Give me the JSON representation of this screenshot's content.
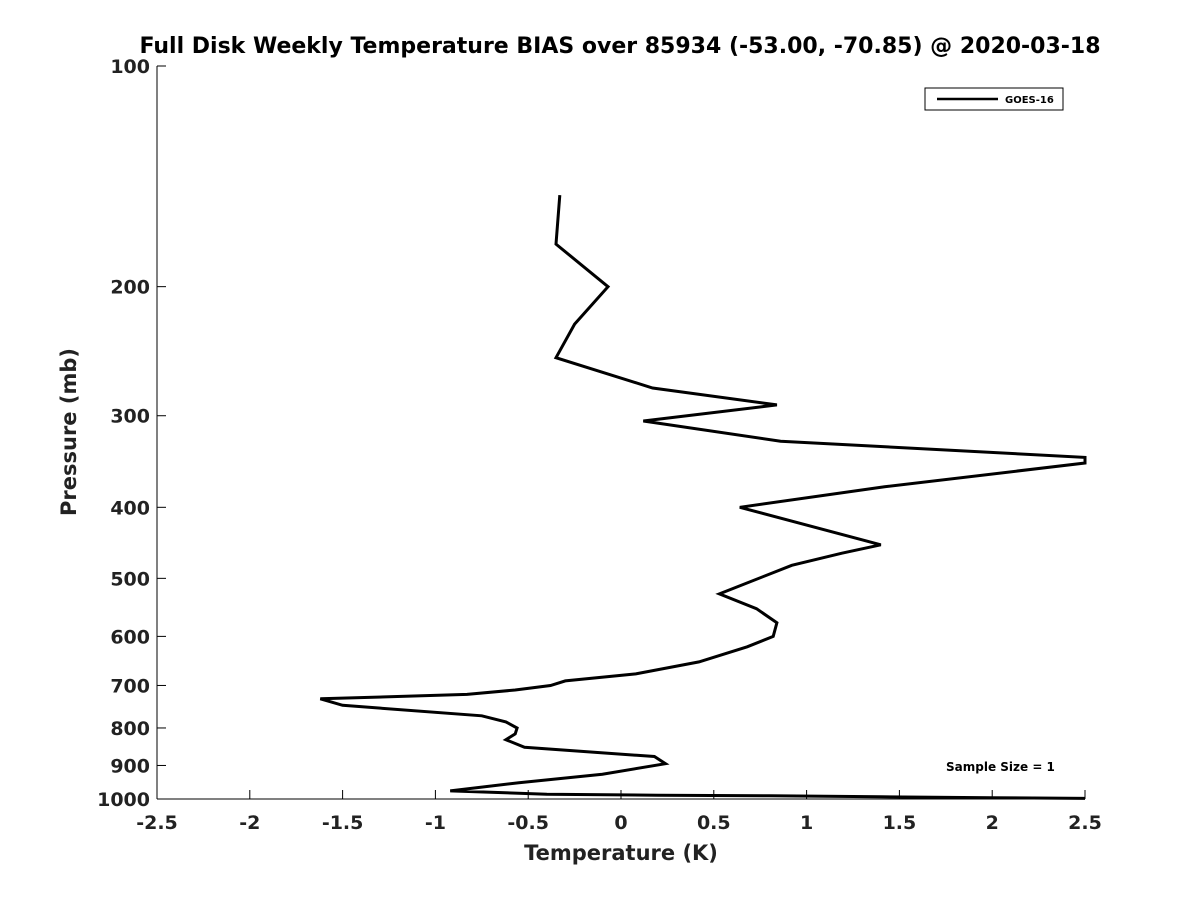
{
  "chart_data": {
    "type": "line",
    "title": "Full Disk Weekly Temperature BIAS over 85934 (-53.00, -70.85) @ 2020-03-18",
    "xlabel": "Temperature (K)",
    "ylabel": "Pressure (mb)",
    "xlim": [
      -2.5,
      2.5
    ],
    "ylim": [
      100,
      1000
    ],
    "y_scale": "log",
    "y_reversed": true,
    "x_ticks": [
      -2.5,
      -2,
      -1.5,
      -1,
      -0.5,
      0,
      0.5,
      1,
      1.5,
      2,
      2.5
    ],
    "x_tick_labels": [
      "-2.5",
      "-2",
      "-1.5",
      "-1",
      "-0.5",
      "0",
      "0.5",
      "1",
      "1.5",
      "2",
      "2.5"
    ],
    "y_ticks": [
      100,
      200,
      300,
      400,
      500,
      600,
      700,
      800,
      900,
      1000
    ],
    "y_tick_labels": [
      "100",
      "200",
      "300",
      "400",
      "500",
      "600",
      "700",
      "800",
      "900",
      "1000"
    ],
    "grid": false,
    "legend_position": "top-right",
    "annotation": "Sample Size = 1",
    "line_color": "#000000",
    "series": [
      {
        "name": "GOES-16",
        "points": [
          [
            -0.33,
            150
          ],
          [
            -0.35,
            175
          ],
          [
            -0.07,
            200
          ],
          [
            -0.25,
            225
          ],
          [
            -0.35,
            250
          ],
          [
            0.17,
            275
          ],
          [
            0.84,
            290
          ],
          [
            0.12,
            305
          ],
          [
            0.86,
            325
          ],
          [
            2.5,
            342
          ],
          [
            2.5,
            348
          ],
          [
            1.42,
            375
          ],
          [
            0.64,
            400
          ],
          [
            1.4,
            450
          ],
          [
            1.19,
            462
          ],
          [
            0.92,
            480
          ],
          [
            0.53,
            525
          ],
          [
            0.73,
            550
          ],
          [
            0.84,
            575
          ],
          [
            0.82,
            600
          ],
          [
            0.68,
            620
          ],
          [
            0.42,
            650
          ],
          [
            0.08,
            675
          ],
          [
            -0.3,
            690
          ],
          [
            -0.38,
            700
          ],
          [
            -0.57,
            710
          ],
          [
            -0.83,
            720
          ],
          [
            -1.62,
            730
          ],
          [
            -1.5,
            745
          ],
          [
            -0.75,
            770
          ],
          [
            -0.62,
            785
          ],
          [
            -0.56,
            800
          ],
          [
            -0.57,
            815
          ],
          [
            -0.62,
            830
          ],
          [
            -0.52,
            850
          ],
          [
            0.18,
            875
          ],
          [
            0.24,
            895
          ],
          [
            -0.1,
            925
          ],
          [
            -0.55,
            950
          ],
          [
            -0.92,
            975
          ],
          [
            -0.4,
            985
          ],
          [
            0.2,
            988
          ],
          [
            0.8,
            990
          ],
          [
            1.4,
            993
          ],
          [
            2.0,
            996
          ],
          [
            2.5,
            998
          ]
        ]
      }
    ]
  }
}
